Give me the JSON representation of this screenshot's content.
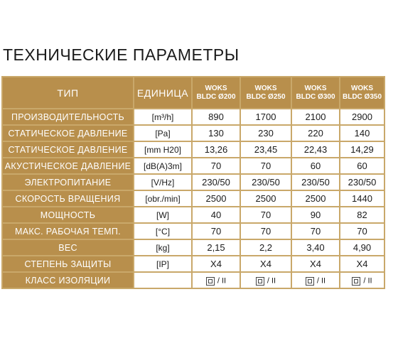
{
  "title": "ТЕХНИЧЕСКИЕ ПАРАМЕТРЫ",
  "header": {
    "type_label": "ТИП",
    "unit_label": "ЕДИНИЦА",
    "models": [
      {
        "line1": "WOKS",
        "line2": "BLDC Ø200"
      },
      {
        "line1": "WOKS",
        "line2": "BLDC Ø250"
      },
      {
        "line1": "WOKS",
        "line2": "BLDC Ø300"
      },
      {
        "line1": "WOKS",
        "line2": "BLDC Ø350"
      }
    ]
  },
  "rows": [
    {
      "label": "ПРОИЗВОДИТЕЛЬНОСТЬ",
      "unit": "[m³/h]",
      "values": [
        "890",
        "1700",
        "2100",
        "2900"
      ]
    },
    {
      "label": "СТАТИЧЕСКОЕ ДАВЛЕНИЕ",
      "unit": "[Pa]",
      "values": [
        "130",
        "230",
        "220",
        "140"
      ]
    },
    {
      "label": "СТАТИЧЕСКОЕ ДАВЛЕНИЕ",
      "unit": "[mm H20]",
      "values": [
        "13,26",
        "23,45",
        "22,43",
        "14,29"
      ]
    },
    {
      "label": "АКУСТИЧЕСКОЕ ДАВЛЕНИЕ",
      "unit": "[dB(A)3m]",
      "values": [
        "70",
        "70",
        "60",
        "60"
      ]
    },
    {
      "label": "ЭЛЕКТРОПИТАНИЕ",
      "unit": "[V/Hz]",
      "values": [
        "230/50",
        "230/50",
        "230/50",
        "230/50"
      ]
    },
    {
      "label": "СКОРОСТЬ ВРАЩЕНИЯ",
      "unit": "[obr./min]",
      "values": [
        "2500",
        "2500",
        "2500",
        "1440"
      ]
    },
    {
      "label": "МОЩНОСТЬ",
      "unit": "[W]",
      "values": [
        "40",
        "70",
        "90",
        "82"
      ]
    },
    {
      "label": "МАКС. РАБОЧАЯ ТЕМП.",
      "unit": "[°C]",
      "values": [
        "70",
        "70",
        "70",
        "70"
      ]
    },
    {
      "label": "ВЕС",
      "unit": "[kg]",
      "values": [
        "2,15",
        "2,2",
        "3,40",
        "4,90"
      ]
    },
    {
      "label": "СТЕПЕНЬ ЗАЩИТЫ",
      "unit": "[IP]",
      "values": [
        "X4",
        "X4",
        "X4",
        "X4"
      ]
    }
  ],
  "insulation": {
    "label": "КЛАСС ИЗОЛЯЦИИ",
    "unit": "",
    "icon": "double-insulation-square-icon",
    "values": [
      "/ II",
      "/ II",
      "/ II",
      "/ II"
    ]
  },
  "colors": {
    "accent": "#b88f4c",
    "border": "#c9a86a",
    "text": "#1a1a1a"
  }
}
